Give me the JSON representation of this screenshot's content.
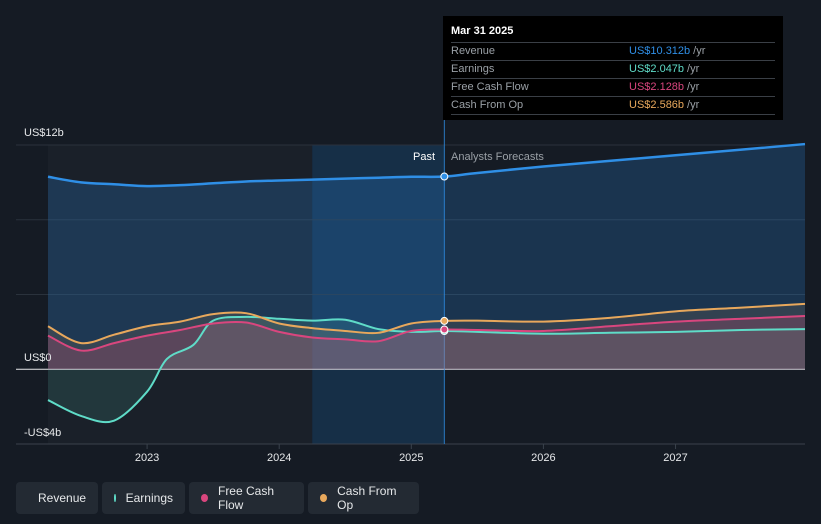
{
  "chart_data": {
    "type": "line",
    "y_axis_labels": [
      "US$12b",
      "US$0",
      "-US$4b"
    ],
    "ylim": [
      -4,
      12
    ],
    "x_ticks": [
      "2023",
      "2024",
      "2025",
      "2026",
      "2027"
    ],
    "x_range": [
      2022.25,
      2027.98
    ],
    "past_label": "Past",
    "forecast_label": "Analysts Forecasts",
    "divider_x": 2025.25,
    "series": [
      {
        "name": "Revenue",
        "color": "#2f8fe6",
        "x": [
          2022.25,
          2022.5,
          2022.75,
          2023.0,
          2023.25,
          2023.5,
          2023.75,
          2024.0,
          2024.25,
          2024.5,
          2024.75,
          2025.0,
          2025.25,
          2025.5,
          2026.0,
          2026.5,
          2027.0,
          2027.5,
          2027.98
        ],
        "values": [
          10.3,
          10.0,
          9.9,
          9.8,
          9.85,
          9.95,
          10.05,
          10.1,
          10.15,
          10.2,
          10.25,
          10.3,
          10.312,
          10.5,
          10.85,
          11.15,
          11.45,
          11.75,
          12.05
        ]
      },
      {
        "name": "Earnings",
        "color": "#5fdcc8",
        "x": [
          2022.25,
          2022.5,
          2022.75,
          2023.0,
          2023.15,
          2023.35,
          2023.5,
          2023.75,
          2024.0,
          2024.25,
          2024.5,
          2024.75,
          2025.0,
          2025.25,
          2025.5,
          2026.0,
          2026.5,
          2027.0,
          2027.5,
          2027.98
        ],
        "values": [
          -1.65,
          -2.5,
          -2.75,
          -1.2,
          0.55,
          1.3,
          2.6,
          2.8,
          2.7,
          2.6,
          2.65,
          2.15,
          2.0,
          2.047,
          2.0,
          1.9,
          1.95,
          2.0,
          2.1,
          2.15
        ]
      },
      {
        "name": "Free Cash Flow",
        "color": "#d9467e",
        "x": [
          2022.25,
          2022.5,
          2022.75,
          2023.0,
          2023.25,
          2023.5,
          2023.75,
          2024.0,
          2024.25,
          2024.5,
          2024.75,
          2025.0,
          2025.25,
          2025.5,
          2026.0,
          2026.5,
          2027.0,
          2027.5,
          2027.98
        ],
        "values": [
          1.8,
          1.0,
          1.4,
          1.8,
          2.1,
          2.45,
          2.5,
          2.0,
          1.7,
          1.6,
          1.5,
          2.05,
          2.128,
          2.1,
          2.05,
          2.3,
          2.55,
          2.7,
          2.85
        ]
      },
      {
        "name": "Cash From Op",
        "color": "#e8a85c",
        "x": [
          2022.25,
          2022.5,
          2022.75,
          2023.0,
          2023.25,
          2023.5,
          2023.75,
          2024.0,
          2024.25,
          2024.5,
          2024.75,
          2025.0,
          2025.25,
          2025.5,
          2026.0,
          2026.5,
          2027.0,
          2027.5,
          2027.98
        ],
        "values": [
          2.3,
          1.4,
          1.85,
          2.3,
          2.55,
          2.95,
          3.0,
          2.45,
          2.2,
          2.05,
          1.95,
          2.45,
          2.586,
          2.6,
          2.55,
          2.75,
          3.1,
          3.3,
          3.5
        ]
      }
    ]
  },
  "tooltip": {
    "title": "Mar 31 2025",
    "rows": [
      {
        "name": "Revenue",
        "value": "US$10.312b",
        "unit": "/yr",
        "color": "#2f8fe6"
      },
      {
        "name": "Earnings",
        "value": "US$2.047b",
        "unit": "/yr",
        "color": "#5fdcc8"
      },
      {
        "name": "Free Cash Flow",
        "value": "US$2.128b",
        "unit": "/yr",
        "color": "#d9467e"
      },
      {
        "name": "Cash From Op",
        "value": "US$2.586b",
        "unit": "/yr",
        "color": "#e8a85c"
      }
    ]
  },
  "legend": [
    {
      "label": "Revenue",
      "color": "#2f8fe6"
    },
    {
      "label": "Earnings",
      "color": "#5fdcc8"
    },
    {
      "label": "Free Cash Flow",
      "color": "#d9467e"
    },
    {
      "label": "Cash From Op",
      "color": "#e8a85c"
    }
  ]
}
